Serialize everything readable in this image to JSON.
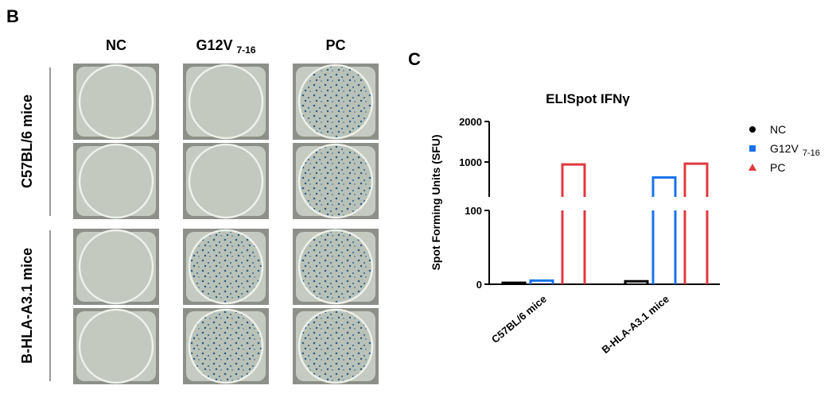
{
  "panel_b": {
    "label": "B",
    "columns": [
      "NC",
      "G12V",
      "PC"
    ],
    "column_subscripts": [
      null,
      "7-16",
      null
    ],
    "rows": [
      "C57BL/6 mice",
      "B-HLA-A3.1 mice"
    ]
  },
  "chart_data": {
    "type": "bar",
    "panel_label": "C",
    "title": "ELISpot IFNγ",
    "y_label": "Spot Forming Units (SFU)",
    "categories": [
      "C57BL/6 mice",
      "B-HLA-A3.1 mice"
    ],
    "series": [
      {
        "name": "NC",
        "color": "#000000",
        "marker": "circle",
        "values": [
          2,
          4
        ]
      },
      {
        "name": "G12V",
        "subscript": "7-16",
        "color": "#1a73e8",
        "marker": "square",
        "values": [
          5,
          620
        ]
      },
      {
        "name": "PC",
        "color": "#e0393e",
        "marker": "triangle",
        "values": [
          940,
          960
        ]
      }
    ],
    "ylim_lower": [
      0,
      100
    ],
    "ylim_upper": [
      140,
      2000
    ],
    "yticks": [
      0,
      100,
      1000,
      2000
    ],
    "legend": "right"
  }
}
